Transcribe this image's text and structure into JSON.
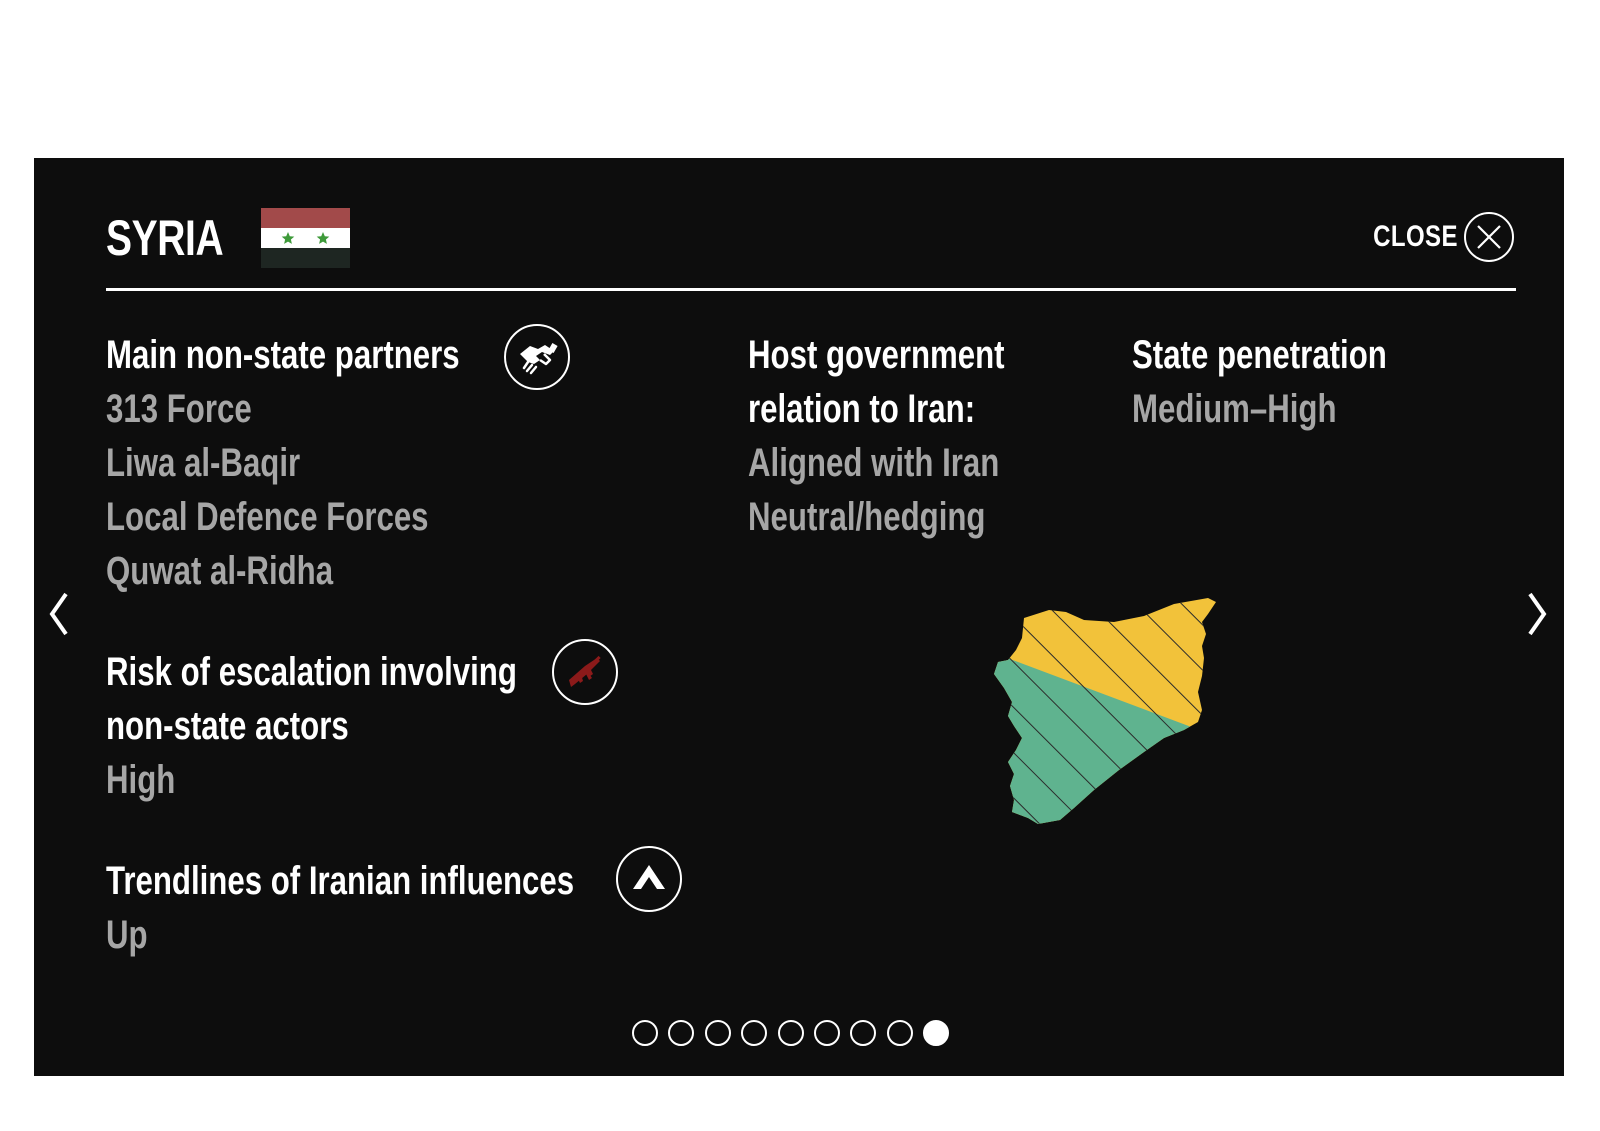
{
  "header": {
    "title": "SYRIA",
    "close_label": "CLOSE"
  },
  "flag_colors": {
    "top": "#a24a4a",
    "middle": "#ffffff",
    "bottom": "#1e2622",
    "stars": "#3e9a3a"
  },
  "partners": {
    "heading": "Main non-state partners",
    "icon": "handshake-icon",
    "items": [
      "313 Force",
      "Liwa al-Baqir",
      "Local Defence Forces",
      "Quwat al-Ridha"
    ]
  },
  "host_government": {
    "heading_line1": "Host government",
    "heading_line2": "relation to Iran:",
    "values": [
      "Aligned with Iran",
      "Neutral/hedging"
    ]
  },
  "state_penetration": {
    "heading": "State penetration",
    "value": "Medium–High"
  },
  "risk": {
    "heading_line1": "Risk of escalation involving",
    "heading_line2": "non-state actors",
    "value": "High",
    "icon": "rifle-icon",
    "icon_color": "#8b1a1a"
  },
  "trend": {
    "heading": "Trendlines of Iranian influences",
    "value": "Up",
    "icon": "up-arrow-icon"
  },
  "map_colors": {
    "aligned": "#f2c23a",
    "neutral": "#5fb38f",
    "hatch": "#2b2b2b"
  },
  "pagination": {
    "total": 9,
    "active_index": 8
  }
}
